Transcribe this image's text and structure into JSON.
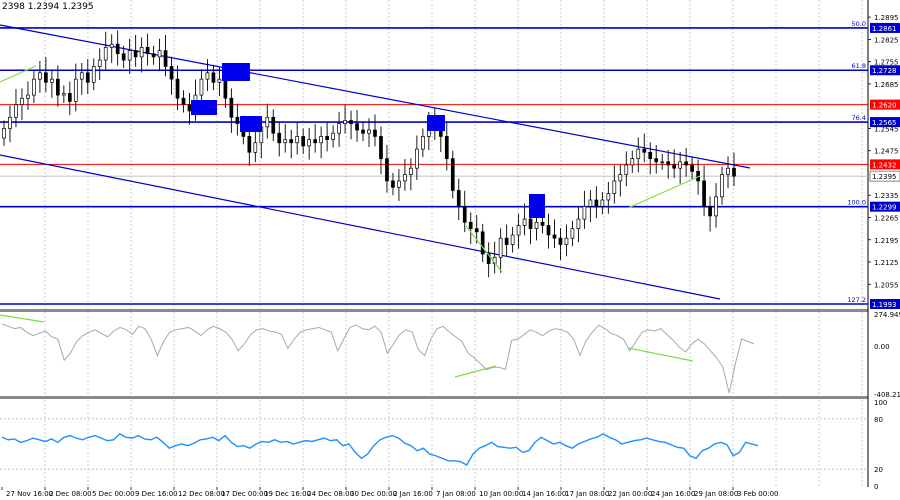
{
  "header": {
    "ohlc_text": "2398 1.2394 1.2395"
  },
  "colors": {
    "candle": "#000000",
    "level_blue": "#0000cd",
    "level_red": "#ff0000",
    "trend": "#0000cd",
    "diverg": "#7fdd4c",
    "box": "#0000ee",
    "osc": "#a9a9a9",
    "rsi": "#1e90ff",
    "grid": "#c0c0c0"
  },
  "chart_data": [
    {
      "type": "candlestick",
      "title": "",
      "price_ticks": [
        "1.2895",
        "1.2825",
        "1.2755",
        "1.2685",
        "1.2545",
        "1.2475",
        "1.2335",
        "1.2265",
        "1.2195",
        "1.2125",
        "1.2055"
      ],
      "time_labels": [
        "27 Nov 16:00",
        "2 Dec 08:00",
        "5 Dec 00:00",
        "9 Dec 16:00",
        "12 Dec 08:00",
        "17 Dec 00:00",
        "19 Dec 16:00",
        "24 Dec 08:00",
        "30 Dec 00:00",
        "2 Jan 16:00",
        "7 Jan 08:00",
        "10 Jan 00:00",
        "14 Jan 16:00",
        "17 Jan 08:00",
        "22 Jan 00:00",
        "24 Jan 16:00",
        "29 Jan 08:00",
        "3 Feb 00:00"
      ],
      "current_price": "1.2395",
      "levels": [
        {
          "price": 1.2861,
          "label": "1.2861",
          "fib": "50.0",
          "color": "blue"
        },
        {
          "price": 1.2728,
          "label": "1.2728",
          "fib": "61.8",
          "color": "blue"
        },
        {
          "price": 1.262,
          "label": "1.2620",
          "fib": "",
          "color": "red"
        },
        {
          "price": 1.2565,
          "label": "1.2565",
          "fib": "76.4",
          "color": "blue"
        },
        {
          "price": 1.2432,
          "label": "1.2432",
          "fib": "",
          "color": "red"
        },
        {
          "price": 1.2299,
          "label": "1.2299",
          "fib": "100.0",
          "color": "blue"
        },
        {
          "price": 1.1993,
          "label": "1.1993",
          "fib": "127.2",
          "color": "blue"
        }
      ],
      "close_series": [
        1.2545,
        1.258,
        1.262,
        1.264,
        1.265,
        1.27,
        1.272,
        1.269,
        1.27,
        1.265,
        1.2655,
        1.263,
        1.27,
        1.272,
        1.269,
        1.274,
        1.276,
        1.28,
        1.281,
        1.278,
        1.276,
        1.279,
        1.277,
        1.28,
        1.278,
        1.277,
        1.279,
        1.274,
        1.27,
        1.264,
        1.262,
        1.26,
        1.265,
        1.27,
        1.272,
        1.269,
        1.27,
        1.264,
        1.258,
        1.256,
        1.252,
        1.247,
        1.25,
        1.255,
        1.258,
        1.253,
        1.25,
        1.251,
        1.25,
        1.252,
        1.249,
        1.251,
        1.25,
        1.252,
        1.251,
        1.253,
        1.256,
        1.257,
        1.256,
        1.254,
        1.253,
        1.254,
        1.252,
        1.245,
        1.238,
        1.236,
        1.238,
        1.24,
        1.242,
        1.248,
        1.252,
        1.256,
        1.254,
        1.252,
        1.245,
        1.235,
        1.23,
        1.225,
        1.223,
        1.222,
        1.215,
        1.212,
        1.214,
        1.22,
        1.218,
        1.221,
        1.224,
        1.226,
        1.223,
        1.225,
        1.224,
        1.221,
        1.22,
        1.218,
        1.22,
        1.223,
        1.226,
        1.23,
        1.232,
        1.23,
        1.232,
        1.234,
        1.238,
        1.24,
        1.243,
        1.245,
        1.248,
        1.247,
        1.245,
        1.244,
        1.244,
        1.243,
        1.242,
        1.244,
        1.243,
        1.241,
        1.238,
        1.23,
        1.227,
        1.233,
        1.24,
        1.242,
        1.2395
      ],
      "x_range": [
        0,
        122
      ]
    },
    {
      "type": "line",
      "series": [
        {
          "name": "",
          "values": [
            190,
            170,
            150,
            160,
            120,
            90,
            110,
            130,
            80,
            60,
            -120,
            -60,
            40,
            90,
            120,
            140,
            110,
            80,
            130,
            160,
            140,
            100,
            170,
            150,
            60,
            -80,
            40,
            120,
            140,
            150,
            160,
            130,
            90,
            140,
            170,
            150,
            120,
            60,
            -40,
            20,
            100,
            140,
            150,
            130,
            120,
            100,
            -20,
            60,
            120,
            140,
            150,
            160,
            140,
            120,
            -40,
            60,
            160,
            180,
            150,
            140,
            170,
            120,
            -60,
            20,
            100,
            140,
            120,
            -30,
            -80,
            60,
            150,
            170,
            120,
            80,
            40,
            -60,
            -100,
            -150,
            -200,
            -180,
            -180,
            -200,
            50,
            60,
            100,
            140,
            120,
            90,
            130,
            150,
            140,
            120,
            60,
            -80,
            50,
            120,
            180,
            150,
            110,
            90,
            60,
            -40,
            40,
            120,
            140,
            130,
            150,
            100,
            50,
            -10,
            -50,
            20,
            60,
            20,
            -40,
            -100,
            -180,
            -400,
            -150,
            60,
            40,
            20
          ]
        }
      ],
      "ylabels": [
        "274.9492",
        "0.00",
        "-408.211"
      ]
    },
    {
      "type": "line",
      "series": [
        {
          "name": "",
          "values": [
            58,
            55,
            56,
            52,
            54,
            57,
            55,
            53,
            56,
            52,
            58,
            60,
            57,
            55,
            58,
            60,
            57,
            54,
            55,
            62,
            58,
            57,
            60,
            56,
            55,
            58,
            52,
            45,
            48,
            50,
            48,
            51,
            55,
            56,
            58,
            54,
            60,
            52,
            47,
            48,
            45,
            50,
            53,
            52,
            55,
            52,
            53,
            50,
            52,
            54,
            53,
            55,
            57,
            54,
            55,
            48,
            50,
            40,
            33,
            38,
            48,
            55,
            58,
            60,
            57,
            51,
            48,
            42,
            45,
            38,
            36,
            33,
            30,
            30,
            29,
            25,
            38,
            45,
            48,
            52,
            47,
            46,
            45,
            46,
            40,
            42,
            52,
            58,
            54,
            50,
            52,
            48,
            45,
            50,
            53,
            56,
            58,
            62,
            58,
            55,
            50,
            52,
            54,
            55,
            57,
            55,
            53,
            52,
            49,
            46,
            45,
            36,
            33,
            42,
            45,
            50,
            52,
            49,
            36,
            40,
            52,
            50,
            48
          ]
        }
      ],
      "ylabels": [
        "100",
        "80",
        "20",
        "0"
      ],
      "ylim": [
        0,
        100
      ]
    }
  ]
}
